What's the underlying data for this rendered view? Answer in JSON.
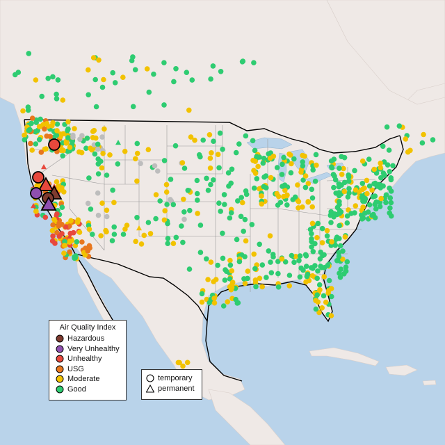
{
  "map": {
    "background_color": "#b9d3ea",
    "land_color": "#efe9e6",
    "border_color": "#000000",
    "state_line_color": "#9a9a9a"
  },
  "legend_aqi": {
    "title": "Air Quality Index",
    "items": [
      {
        "label": "Hazardous",
        "color": "#7e3b2f"
      },
      {
        "label": "Very Unhealthy",
        "color": "#8f4fb0"
      },
      {
        "label": "Unhealthy",
        "color": "#e8483c"
      },
      {
        "label": "USG",
        "color": "#e8771e"
      },
      {
        "label": "Moderate",
        "color": "#f2c200"
      },
      {
        "label": "Good",
        "color": "#2ecc71"
      }
    ]
  },
  "legend_type": {
    "items": [
      {
        "label": "temporary",
        "shape": "circle"
      },
      {
        "label": "permanent",
        "shape": "triangle"
      }
    ]
  },
  "no_data_color": "#bdbdbd"
}
